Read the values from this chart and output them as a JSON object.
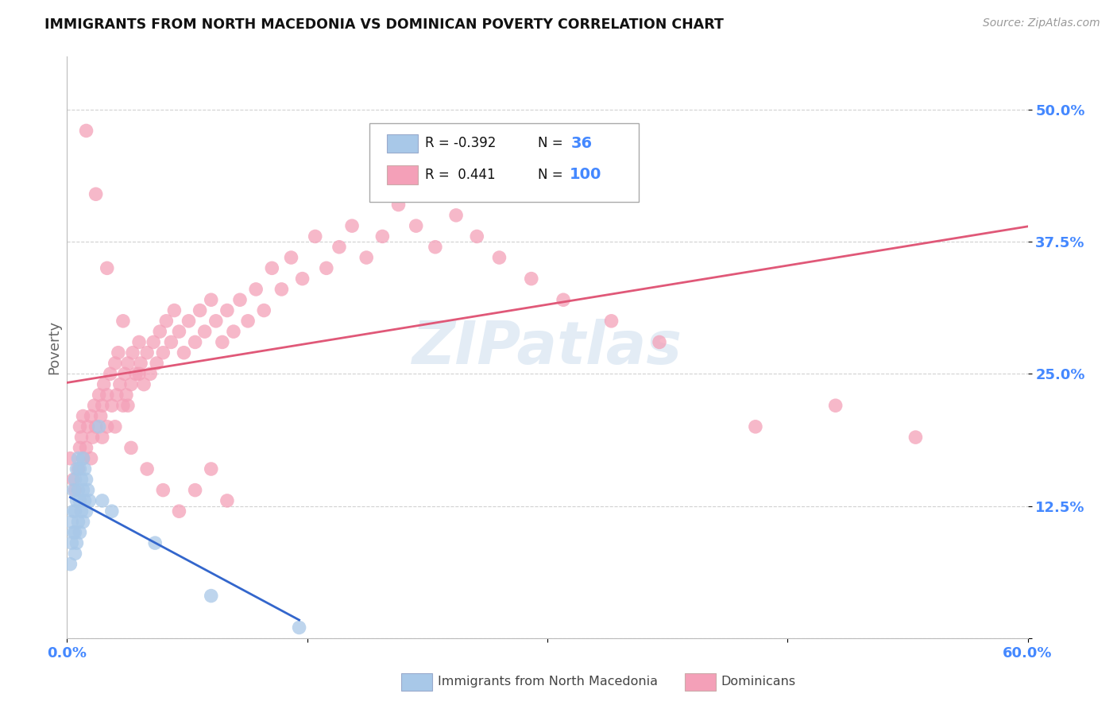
{
  "title": "IMMIGRANTS FROM NORTH MACEDONIA VS DOMINICAN POVERTY CORRELATION CHART",
  "source": "Source: ZipAtlas.com",
  "ylabel": "Poverty",
  "xlim": [
    0.0,
    0.6
  ],
  "ylim": [
    0.0,
    0.55
  ],
  "blue_color": "#a8c8e8",
  "pink_color": "#f4a0b8",
  "blue_line_color": "#3366cc",
  "pink_line_color": "#e05878",
  "watermark": "ZIPatlas",
  "background_color": "#ffffff",
  "grid_color": "#cccccc",
  "legend_r1": "R = -0.392",
  "legend_n1": "36",
  "legend_r2": "R =  0.441",
  "legend_n2": "100",
  "blue_scatter_x": [
    0.002,
    0.003,
    0.003,
    0.004,
    0.004,
    0.004,
    0.005,
    0.005,
    0.005,
    0.005,
    0.006,
    0.006,
    0.006,
    0.007,
    0.007,
    0.007,
    0.008,
    0.008,
    0.008,
    0.009,
    0.009,
    0.01,
    0.01,
    0.01,
    0.011,
    0.011,
    0.012,
    0.012,
    0.013,
    0.014,
    0.02,
    0.022,
    0.028,
    0.055,
    0.09,
    0.145
  ],
  "blue_scatter_y": [
    0.07,
    0.09,
    0.11,
    0.1,
    0.12,
    0.14,
    0.08,
    0.1,
    0.12,
    0.15,
    0.09,
    0.13,
    0.16,
    0.11,
    0.14,
    0.17,
    0.1,
    0.13,
    0.16,
    0.12,
    0.15,
    0.11,
    0.14,
    0.17,
    0.13,
    0.16,
    0.12,
    0.15,
    0.14,
    0.13,
    0.2,
    0.13,
    0.12,
    0.09,
    0.04,
    0.01
  ],
  "pink_scatter_x": [
    0.002,
    0.004,
    0.005,
    0.007,
    0.008,
    0.009,
    0.01,
    0.01,
    0.012,
    0.013,
    0.015,
    0.016,
    0.017,
    0.018,
    0.02,
    0.021,
    0.022,
    0.023,
    0.025,
    0.025,
    0.027,
    0.028,
    0.03,
    0.031,
    0.032,
    0.033,
    0.035,
    0.036,
    0.037,
    0.038,
    0.04,
    0.041,
    0.043,
    0.045,
    0.046,
    0.048,
    0.05,
    0.052,
    0.054,
    0.056,
    0.058,
    0.06,
    0.062,
    0.065,
    0.067,
    0.07,
    0.073,
    0.076,
    0.08,
    0.083,
    0.086,
    0.09,
    0.093,
    0.097,
    0.1,
    0.104,
    0.108,
    0.113,
    0.118,
    0.123,
    0.128,
    0.134,
    0.14,
    0.147,
    0.155,
    0.162,
    0.17,
    0.178,
    0.187,
    0.197,
    0.207,
    0.218,
    0.23,
    0.243,
    0.256,
    0.27,
    0.29,
    0.31,
    0.34,
    0.37,
    0.03,
    0.04,
    0.05,
    0.06,
    0.07,
    0.08,
    0.09,
    0.1,
    0.012,
    0.018,
    0.025,
    0.035,
    0.045,
    0.43,
    0.48,
    0.53,
    0.008,
    0.015,
    0.022,
    0.038
  ],
  "pink_scatter_y": [
    0.17,
    0.15,
    0.14,
    0.16,
    0.18,
    0.19,
    0.17,
    0.21,
    0.18,
    0.2,
    0.21,
    0.19,
    0.22,
    0.2,
    0.23,
    0.21,
    0.22,
    0.24,
    0.2,
    0.23,
    0.25,
    0.22,
    0.26,
    0.23,
    0.27,
    0.24,
    0.22,
    0.25,
    0.23,
    0.26,
    0.24,
    0.27,
    0.25,
    0.28,
    0.26,
    0.24,
    0.27,
    0.25,
    0.28,
    0.26,
    0.29,
    0.27,
    0.3,
    0.28,
    0.31,
    0.29,
    0.27,
    0.3,
    0.28,
    0.31,
    0.29,
    0.32,
    0.3,
    0.28,
    0.31,
    0.29,
    0.32,
    0.3,
    0.33,
    0.31,
    0.35,
    0.33,
    0.36,
    0.34,
    0.38,
    0.35,
    0.37,
    0.39,
    0.36,
    0.38,
    0.41,
    0.39,
    0.37,
    0.4,
    0.38,
    0.36,
    0.34,
    0.32,
    0.3,
    0.28,
    0.2,
    0.18,
    0.16,
    0.14,
    0.12,
    0.14,
    0.16,
    0.13,
    0.48,
    0.42,
    0.35,
    0.3,
    0.25,
    0.2,
    0.22,
    0.19,
    0.2,
    0.17,
    0.19,
    0.22
  ]
}
